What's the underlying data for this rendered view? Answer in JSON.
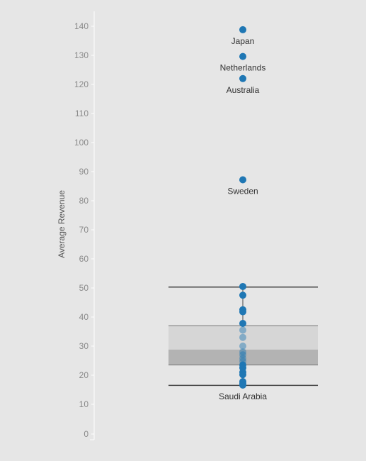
{
  "chart_data": {
    "type": "scatter",
    "title": "",
    "xlabel": "",
    "ylabel": "Average Revenue",
    "ylim": [
      0,
      145
    ],
    "yticks": [
      0,
      10,
      20,
      30,
      40,
      50,
      60,
      70,
      80,
      90,
      100,
      110,
      120,
      130,
      140
    ],
    "grid": false,
    "legend": "none",
    "colors": {
      "point": "#1f77b4",
      "box_upper": "#d6d6d6",
      "box_lower": "#b3b3b3",
      "whisker": "#444444",
      "axis": "#ffffff"
    },
    "box_plot": {
      "lower_whisker": 16.5,
      "q1": 23.5,
      "median": 28.8,
      "q3": 37.0,
      "upper_whisker": 50.3
    },
    "points": [
      {
        "label": "Japan",
        "value": 138.8
      },
      {
        "label": "Netherlands",
        "value": 129.6
      },
      {
        "label": "Australia",
        "value": 122.0
      },
      {
        "label": "Sweden",
        "value": 87.2
      },
      {
        "label": "",
        "value": 50.5
      },
      {
        "label": "",
        "value": 47.5
      },
      {
        "label": "",
        "value": 42.5
      },
      {
        "label": "",
        "value": 41.8
      },
      {
        "label": "",
        "value": 37.8
      },
      {
        "label": "",
        "value": 35.5
      },
      {
        "label": "",
        "value": 33.0
      },
      {
        "label": "",
        "value": 30.0
      },
      {
        "label": "",
        "value": 28.0
      },
      {
        "label": "",
        "value": 27.0
      },
      {
        "label": "",
        "value": 25.8
      },
      {
        "label": "",
        "value": 24.8
      },
      {
        "label": "",
        "value": 23.5
      },
      {
        "label": "",
        "value": 22.5
      },
      {
        "label": "",
        "value": 21.0
      },
      {
        "label": "",
        "value": 20.2
      },
      {
        "label": "",
        "value": 17.8
      },
      {
        "label": "",
        "value": 17.2
      },
      {
        "label": "Saudi Arabia",
        "value": 16.6
      }
    ]
  }
}
